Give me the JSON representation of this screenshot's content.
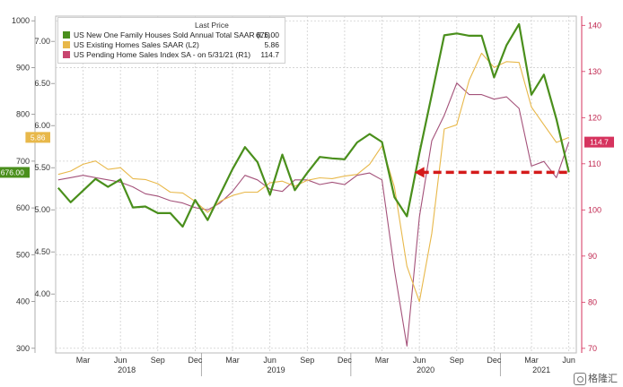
{
  "chart_data": {
    "type": "line",
    "legend": {
      "title": "Last Price",
      "placement": "top-left"
    },
    "series": [
      {
        "key": "nhs",
        "name": "US New One Family Houses Sold Annual Total SAAR",
        "axis_tag": "(L1)",
        "last_value_label": "676.00",
        "color": "#4a8f1c",
        "axis": "L1",
        "x": [
          0,
          1,
          2,
          3,
          4,
          5,
          6,
          7,
          8,
          9,
          10,
          11,
          12,
          13,
          14,
          15,
          16,
          17,
          18,
          19,
          20,
          21,
          22,
          23,
          24,
          25,
          26,
          27,
          28,
          29,
          30,
          31,
          32,
          33,
          34,
          35,
          36,
          37,
          38,
          39,
          40,
          41
        ],
        "values": [
          643,
          612,
          637,
          662,
          645,
          661,
          601,
          603,
          589,
          589,
          560,
          617,
          574,
          629,
          683,
          730,
          698,
          628,
          714,
          638,
          675,
          709,
          706,
          704,
          740,
          758,
          741,
          623,
          582,
          717,
          842,
          969,
          973,
          968,
          968,
          879,
          948,
          993,
          842,
          885,
          790,
          676
        ]
      },
      {
        "key": "ehs",
        "name": "US Existing Homes Sales SAAR",
        "axis_tag": "(L2)",
        "last_value_label": "5.86",
        "color": "#e8b84a",
        "axis": "L2",
        "x": [
          0,
          1,
          2,
          3,
          4,
          5,
          6,
          7,
          8,
          9,
          10,
          11,
          12,
          13,
          14,
          15,
          16,
          17,
          18,
          19,
          20,
          21,
          22,
          23,
          24,
          25,
          26,
          27,
          28,
          29,
          30,
          31,
          32,
          33,
          34,
          35,
          36,
          37,
          38,
          39,
          40,
          41
        ],
        "values": [
          5.42,
          5.46,
          5.54,
          5.58,
          5.48,
          5.5,
          5.37,
          5.36,
          5.31,
          5.21,
          5.2,
          5.1,
          4.97,
          5.1,
          5.17,
          5.21,
          5.21,
          5.32,
          5.34,
          5.28,
          5.35,
          5.38,
          5.37,
          5.4,
          5.42,
          5.54,
          5.76,
          5.27,
          4.33,
          3.91,
          4.72,
          5.96,
          6.01,
          6.54,
          6.86,
          6.69,
          6.76,
          6.75,
          6.22,
          6.01,
          5.8,
          5.86
        ]
      },
      {
        "key": "phs",
        "name": "US Pending Home Sales Index SA -  on 5/31/21",
        "axis_tag": "(R1)",
        "last_value_label": "114.7",
        "color": "#a4527a",
        "axis": "R1",
        "x": [
          0,
          1,
          2,
          3,
          4,
          5,
          6,
          7,
          8,
          9,
          10,
          11,
          12,
          13,
          14,
          15,
          16,
          17,
          18,
          19,
          20,
          21,
          22,
          23,
          24,
          25,
          26,
          27,
          28,
          29,
          30,
          31,
          32,
          33,
          34,
          35,
          36,
          37,
          38,
          39,
          40,
          41
        ],
        "values": [
          106.5,
          107.0,
          107.5,
          107.0,
          106.5,
          106.0,
          105.0,
          103.5,
          103.0,
          102.0,
          101.5,
          100.5,
          100.0,
          101.5,
          104.0,
          107.5,
          106.5,
          104.5,
          104.0,
          106.5,
          106.5,
          105.5,
          106.0,
          105.5,
          107.5,
          108.0,
          106.5,
          87.0,
          70.5,
          98.5,
          115.0,
          120.5,
          127.5,
          125.0,
          125.0,
          124.0,
          124.5,
          122.0,
          109.5,
          110.5,
          107.0,
          114.7
        ]
      }
    ],
    "annotation": {
      "type": "dashed-arrow",
      "color": "#d41b1b",
      "from_x": 41,
      "to_x": 28.6,
      "y_L1": 676
    },
    "axes": {
      "x": {
        "range": [
          -0.2,
          41.6
        ],
        "month_ticks": [
          {
            "x": 2,
            "label": "Mar"
          },
          {
            "x": 5,
            "label": "Jun"
          },
          {
            "x": 8,
            "label": "Sep"
          },
          {
            "x": 11,
            "label": "Dec"
          },
          {
            "x": 14,
            "label": "Mar"
          },
          {
            "x": 17,
            "label": "Jun"
          },
          {
            "x": 20,
            "label": "Sep"
          },
          {
            "x": 23,
            "label": "Dec"
          },
          {
            "x": 26,
            "label": "Mar"
          },
          {
            "x": 29,
            "label": "Jun"
          },
          {
            "x": 32,
            "label": "Sep"
          },
          {
            "x": 35,
            "label": "Dec"
          },
          {
            "x": 38,
            "label": "Mar"
          },
          {
            "x": 41,
            "label": "Jun"
          }
        ],
        "year_ticks": [
          {
            "x": 5.5,
            "label": "2018"
          },
          {
            "x": 17.5,
            "label": "2019"
          },
          {
            "x": 29.5,
            "label": "2020"
          },
          {
            "x": 38.8,
            "label": "2021"
          }
        ],
        "year_boundaries": [
          11.5,
          23.5,
          35.5
        ]
      },
      "y_L1": {
        "range": [
          290,
          1010
        ],
        "ticks": [
          1000,
          900,
          800,
          700,
          600,
          500,
          400,
          300
        ],
        "labels": [
          "1000",
          "900",
          "800",
          "700",
          "600",
          "500",
          "400",
          "300"
        ]
      },
      "y_L2": {
        "range": [
          3.3,
          7.3
        ],
        "ticks": [
          7.0,
          6.5,
          6.0,
          5.5,
          5.0,
          4.5,
          4.0
        ],
        "labels": [
          "7.00",
          "6.50",
          "6.00",
          "5.50",
          "5.00",
          "4.50",
          "4.00"
        ]
      },
      "y_R1": {
        "range": [
          69,
          142
        ],
        "ticks": [
          140,
          130,
          120,
          110,
          100,
          90,
          80,
          70
        ],
        "labels": [
          "140",
          "130",
          "120",
          "110",
          "100",
          "90",
          "80",
          "70"
        ]
      }
    },
    "grid": true,
    "flags": {
      "L1": {
        "text": "676.00",
        "color": "#4a8f1c"
      },
      "L2": {
        "text": "5.86",
        "color": "#e8b84a"
      },
      "R1": {
        "text": "114.7",
        "color": "#d6335e"
      }
    }
  },
  "watermark": {
    "text": "格隆汇"
  }
}
